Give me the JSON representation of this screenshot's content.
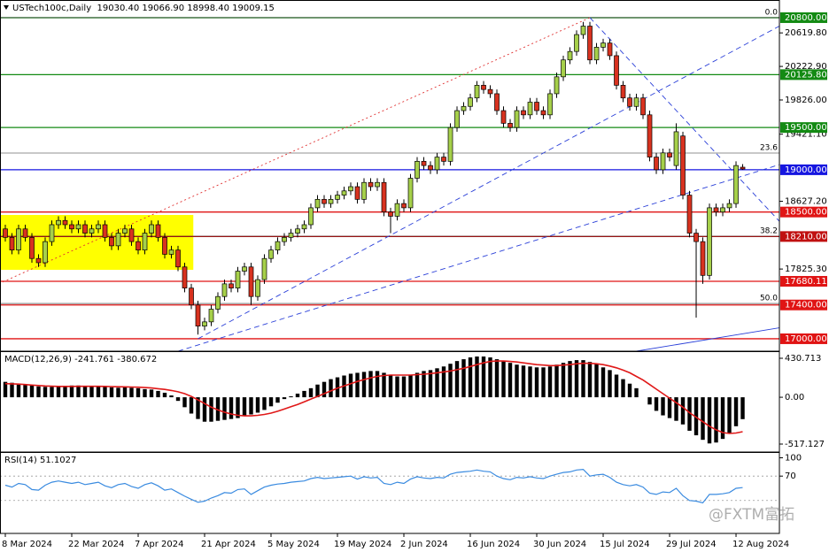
{
  "chart_data": [
    {
      "type": "candlestick",
      "title": "USTech100c,Daily  19030.40 19066.90 18998.40 19009.15",
      "open": [
        18300,
        18200,
        18050,
        18300,
        18200,
        17950,
        17900,
        18150,
        18350,
        18400,
        18350,
        18300,
        18350,
        18250,
        18300,
        18350,
        18200,
        18100,
        18250,
        18300,
        18150,
        18050,
        18250,
        18350,
        18200,
        18000,
        18050,
        17850,
        17600,
        17400,
        17150,
        17200,
        17350,
        17500,
        17650,
        17600,
        17800,
        17850,
        17500,
        17700,
        17950,
        18050,
        18150,
        18200,
        18250,
        18300,
        18350,
        18550,
        18650,
        18600,
        18650,
        18700,
        18750,
        18800,
        18650,
        18850,
        18800,
        18850,
        18500,
        18450,
        18600,
        18550,
        18900,
        19100,
        19050,
        19000,
        19150,
        19100,
        19500,
        19700,
        19750,
        19850,
        20000,
        19950,
        19900,
        19700,
        19550,
        19500,
        19700,
        19650,
        19800,
        19700,
        19650,
        19900,
        20100,
        20300,
        20400,
        20600,
        20700,
        20300,
        20450,
        20500,
        20350,
        20000,
        19850,
        19750,
        19850,
        19650,
        19150,
        19000,
        19200,
        19050,
        19400,
        18700,
        18250,
        18150,
        17750,
        18550,
        18500,
        18550,
        18600,
        19030.4
      ],
      "high": [
        18350,
        18250,
        18350,
        18350,
        18250,
        18000,
        18200,
        18400,
        18450,
        18450,
        18400,
        18400,
        18400,
        18350,
        18400,
        18400,
        18250,
        18300,
        18350,
        18350,
        18200,
        18300,
        18400,
        18400,
        18250,
        18100,
        18100,
        17900,
        17650,
        17450,
        17250,
        17400,
        17550,
        17700,
        17700,
        17850,
        17900,
        17900,
        17750,
        18000,
        18100,
        18200,
        18250,
        18300,
        18350,
        18400,
        18600,
        18700,
        18700,
        18700,
        18750,
        18800,
        18850,
        18850,
        18900,
        18900,
        18900,
        18900,
        18550,
        18650,
        18650,
        18950,
        19150,
        19150,
        19100,
        19200,
        19200,
        19550,
        19750,
        19800,
        19900,
        20050,
        20050,
        20000,
        19950,
        19750,
        19600,
        19750,
        19750,
        19850,
        19850,
        19750,
        19950,
        20150,
        20350,
        20450,
        20650,
        20750,
        20750,
        20500,
        20550,
        20550,
        20400,
        20050,
        19900,
        19900,
        19900,
        19700,
        19200,
        19250,
        19250,
        19550,
        19450,
        18750,
        18300,
        18200,
        18600,
        18600,
        18600,
        18650,
        19100,
        19066.9
      ],
      "low": [
        18150,
        18000,
        18000,
        18150,
        17900,
        17850,
        17850,
        18100,
        18300,
        18300,
        18250,
        18250,
        18200,
        18200,
        18250,
        18150,
        18050,
        18050,
        18200,
        18100,
        18000,
        18000,
        18200,
        18150,
        17950,
        17950,
        17800,
        17550,
        17350,
        17050,
        17100,
        17150,
        17300,
        17450,
        17550,
        17550,
        17750,
        17400,
        17450,
        17650,
        17900,
        18000,
        18100,
        18150,
        18200,
        18250,
        18300,
        18500,
        18550,
        18550,
        18600,
        18650,
        18700,
        18600,
        18600,
        18750,
        18750,
        18450,
        18250,
        18400,
        18500,
        18500,
        18850,
        19000,
        18950,
        18950,
        19050,
        19050,
        19450,
        19650,
        19700,
        19800,
        19900,
        19850,
        19650,
        19500,
        19450,
        19450,
        19600,
        19600,
        19650,
        19600,
        19600,
        19850,
        20050,
        20250,
        20350,
        20550,
        20250,
        20250,
        20400,
        20300,
        19950,
        19800,
        19700,
        19700,
        19600,
        19100,
        18950,
        18950,
        19100,
        19000,
        18650,
        18200,
        17250,
        17650,
        17700,
        18450,
        18450,
        18500,
        18550,
        18998.4
      ],
      "close": [
        18200,
        18050,
        18300,
        18200,
        17950,
        17900,
        18150,
        18350,
        18400,
        18350,
        18300,
        18350,
        18250,
        18300,
        18350,
        18200,
        18100,
        18250,
        18300,
        18150,
        18050,
        18250,
        18350,
        18200,
        18000,
        18050,
        17850,
        17600,
        17400,
        17150,
        17200,
        17350,
        17500,
        17650,
        17600,
        17800,
        17850,
        17500,
        17700,
        17950,
        18050,
        18150,
        18200,
        18250,
        18300,
        18350,
        18550,
        18650,
        18600,
        18650,
        18700,
        18750,
        18800,
        18650,
        18850,
        18800,
        18850,
        18500,
        18450,
        18600,
        18550,
        18900,
        19100,
        19050,
        19000,
        19150,
        19100,
        19500,
        19700,
        19750,
        19850,
        20000,
        19950,
        19900,
        19700,
        19550,
        19500,
        19700,
        19650,
        19800,
        19700,
        19650,
        19900,
        20100,
        20300,
        20400,
        20600,
        20700,
        20300,
        20450,
        20500,
        20350,
        20000,
        19850,
        19750,
        19850,
        19650,
        19150,
        19000,
        19200,
        19150,
        19450,
        18700,
        18250,
        18150,
        17750,
        18550,
        18500,
        18550,
        18600,
        19050,
        19009.15
      ],
      "up_color": "#a6d04a",
      "down_color": "#d8321f",
      "xlim": [
        -0.8,
        116.53
      ],
      "ylim": [
        16853,
        21009
      ],
      "yticks": [
        {
          "value": 20619.8,
          "label": "20619.80"
        },
        {
          "value": 20222.9,
          "label": "20222.90"
        },
        {
          "value": 19826,
          "label": "19826.00"
        },
        {
          "value": 19421.1,
          "label": "19421.10"
        },
        {
          "value": 18627.2,
          "label": "18627.20"
        },
        {
          "value": 17825.3,
          "label": "17825.30"
        }
      ],
      "levels": [
        {
          "value": 20800,
          "label": "20800.00",
          "color": "#138a13"
        },
        {
          "value": 20125.8,
          "label": "20125.80",
          "color": "#138a13"
        },
        {
          "value": 19500,
          "label": "19500.00",
          "color": "#138a13"
        },
        {
          "value": 19000,
          "label": "19000.00",
          "color": "#1616e0"
        },
        {
          "value": 18500,
          "label": "18500.00",
          "color": "#e01414"
        },
        {
          "value": 18210,
          "label": "18210.00",
          "color": "#c01010"
        },
        {
          "value": 17680.11,
          "label": "17680.11",
          "color": "#e01414"
        },
        {
          "value": 17400,
          "label": "17400.00",
          "color": "#e01414"
        },
        {
          "value": 17000,
          "label": "17000.00",
          "color": "#e01414"
        }
      ],
      "fib": [
        {
          "value": 20800,
          "label": "0.0"
        },
        {
          "value": 19198,
          "label": "23.6"
        },
        {
          "value": 18214,
          "label": "38.2"
        },
        {
          "value": 17418,
          "label": "50.0"
        }
      ],
      "trendlines": [
        {
          "x": [
            -1,
            88
          ],
          "y": [
            17650,
            20800
          ],
          "color": "#e03030",
          "dash": "2,3"
        },
        {
          "x": [
            29,
            117
          ],
          "y": [
            17000,
            20720
          ],
          "color": "#2a3fd8",
          "dash": "6,4"
        },
        {
          "x": [
            26,
            117
          ],
          "y": [
            16853,
            19072
          ],
          "color": "#2a3fd8",
          "dash": "6,4"
        },
        {
          "x": [
            88,
            117
          ],
          "y": [
            20800,
            18350
          ],
          "color": "#2a3fd8",
          "dash": "6,4"
        },
        {
          "x": [
            95,
            117
          ],
          "y": [
            16853,
            17136
          ],
          "color": "#2a3fd8",
          "dash": "none"
        }
      ],
      "highlight": {
        "x": [
          -0.8,
          28.3
        ],
        "y": [
          17816,
          18465
        ],
        "color": "#ffff00"
      },
      "xticks": [
        {
          "value": 0,
          "label": "8 Mar 2024"
        },
        {
          "value": 10,
          "label": "22 Mar 2024"
        },
        {
          "value": 20,
          "label": "7 Apr 2024"
        },
        {
          "value": 30,
          "label": "21 Apr 2024"
        },
        {
          "value": 40,
          "label": "5 May 2024"
        },
        {
          "value": 50,
          "label": "19 May 2024"
        },
        {
          "value": 60,
          "label": "2 Jun 2024"
        },
        {
          "value": 70,
          "label": "16 Jun 2024"
        },
        {
          "value": 80,
          "label": "30 Jun 2024"
        },
        {
          "value": 90,
          "label": "15 Jul 2024"
        },
        {
          "value": 100,
          "label": "29 Jul 2024"
        },
        {
          "value": 110,
          "label": "12 Aug 2024"
        }
      ],
      "watermark": "@FXTM富拓"
    },
    {
      "type": "macd",
      "title": "MACD(12,26,9) -241.761 -380.672",
      "histogram": {
        "color": "#000000",
        "values": [
          170,
          160,
          150,
          140,
          130,
          120,
          115,
          115,
          120,
          125,
          130,
          130,
          125,
          120,
          120,
          115,
          110,
          105,
          110,
          105,
          100,
          90,
          85,
          70,
          50,
          20,
          -40,
          -110,
          -180,
          -240,
          -270,
          -270,
          -260,
          -250,
          -240,
          -230,
          -200,
          -190,
          -170,
          -140,
          -100,
          -60,
          -20,
          10,
          40,
          70,
          100,
          140,
          170,
          200,
          220,
          240,
          260,
          270,
          280,
          290,
          290,
          270,
          250,
          230,
          230,
          250,
          270,
          290,
          300,
          320,
          340,
          370,
          400,
          420,
          440,
          450,
          450,
          440,
          420,
          400,
          380,
          360,
          350,
          340,
          330,
          330,
          340,
          360,
          380,
          400,
          410,
          410,
          390,
          370,
          330,
          300,
          250,
          200,
          150,
          100,
          0,
          -80,
          -150,
          -200,
          -230,
          -260,
          -300,
          -370,
          -420,
          -470,
          -510,
          -500,
          -460,
          -400,
          -320,
          -241.761
        ]
      },
      "signal": {
        "color": "#e01818",
        "values": [
          150,
          148,
          145,
          140,
          135,
          130,
          125,
          122,
          120,
          120,
          120,
          121,
          121,
          121,
          121,
          120,
          118,
          116,
          115,
          113,
          111,
          107,
          102,
          95,
          87,
          75,
          60,
          40,
          10,
          -30,
          -70,
          -110,
          -140,
          -165,
          -185,
          -200,
          -205,
          -205,
          -200,
          -190,
          -175,
          -155,
          -130,
          -105,
          -80,
          -50,
          -20,
          10,
          40,
          70,
          100,
          125,
          150,
          175,
          195,
          215,
          230,
          240,
          245,
          245,
          245,
          245,
          250,
          255,
          262,
          270,
          280,
          290,
          305,
          320,
          340,
          360,
          380,
          395,
          400,
          400,
          395,
          390,
          380,
          370,
          360,
          355,
          350,
          350,
          355,
          360,
          370,
          375,
          375,
          370,
          360,
          345,
          325,
          300,
          270,
          230,
          190,
          140,
          90,
          40,
          -10,
          -60,
          -110,
          -170,
          -220,
          -270,
          -320,
          -360,
          -390,
          -400,
          -395,
          -380.672
        ]
      },
      "ylim": [
        -605,
        499
      ],
      "yticks": [
        430.713,
        {
          "value": 0,
          "label": "0.00"
        },
        -517.127
      ]
    },
    {
      "type": "rsi",
      "title": "RSI(14) 51.1027",
      "color": "#3a8be0",
      "values": [
        55,
        52,
        58,
        56,
        48,
        47,
        55,
        60,
        62,
        60,
        58,
        60,
        56,
        58,
        60,
        54,
        51,
        56,
        58,
        53,
        50,
        56,
        59,
        54,
        47,
        49,
        43,
        37,
        32,
        27,
        29,
        34,
        38,
        43,
        42,
        48,
        49,
        40,
        46,
        52,
        55,
        57,
        58,
        60,
        61,
        62,
        66,
        68,
        66,
        67,
        68,
        69,
        70,
        65,
        69,
        67,
        68,
        58,
        56,
        60,
        58,
        65,
        69,
        67,
        66,
        68,
        67,
        73,
        76,
        77,
        78,
        80,
        78,
        77,
        70,
        66,
        64,
        68,
        67,
        69,
        67,
        66,
        70,
        73,
        76,
        77,
        80,
        81,
        70,
        72,
        73,
        68,
        60,
        56,
        54,
        56,
        52,
        42,
        40,
        44,
        43,
        50,
        38,
        30,
        29,
        26,
        40,
        40,
        41,
        43,
        50,
        51.1027
      ],
      "ylim": [
        -24,
        108
      ],
      "yticks": [
        100,
        70
      ],
      "levels": [
        70,
        30
      ]
    }
  ]
}
